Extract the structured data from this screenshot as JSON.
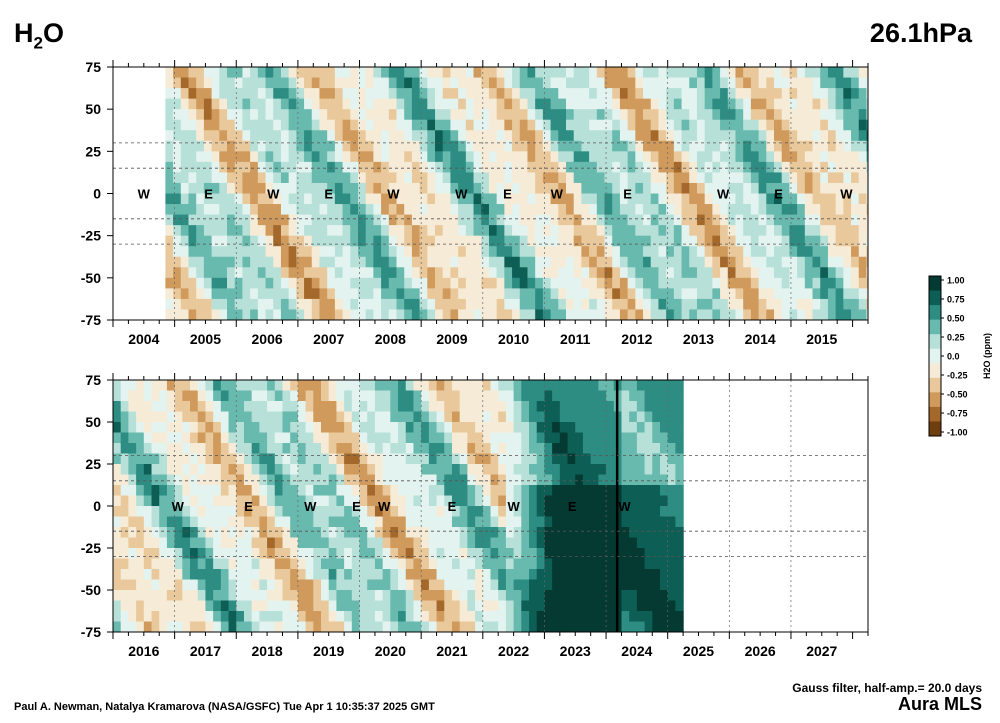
{
  "header": {
    "species_main": "H",
    "species_sub": "2",
    "species_tail": "O",
    "pressure": "26.1hPa"
  },
  "footer": {
    "credit": "Paul A. Newman, Natalya Kramarova (NASA/GSFC) Tue Apr  1 10:35:37 2025 GMT",
    "filter": "Gauss filter, half-amp.= 20.0 days",
    "instrument": "Aura MLS"
  },
  "colorbar": {
    "label": "H2O (ppm)",
    "ticks": [
      "1.00",
      "0.75",
      "0.50",
      "0.25",
      "0.0",
      "-0.25",
      "-0.50",
      "-0.75",
      "-1.00"
    ],
    "colors": [
      "#053a33",
      "#0d5f55",
      "#2d8d82",
      "#68b9ae",
      "#b7e0d9",
      "#e3f3ef",
      "#f6ebd6",
      "#e9c99b",
      "#cf9a5c",
      "#a3682a",
      "#6e3e0f"
    ]
  },
  "chart_data": [
    {
      "type": "heatmap",
      "title": "",
      "xlabel": "",
      "ylabel": "",
      "x_ticks": [
        "2004",
        "2005",
        "2006",
        "2007",
        "2008",
        "2009",
        "2010",
        "2011",
        "2012",
        "2013",
        "2014",
        "2015"
      ],
      "y_ticks": [
        "75",
        "50",
        "25",
        "0",
        "-25",
        "-50",
        "-75"
      ],
      "ylim": [
        -75,
        75
      ],
      "xlim": [
        2003.5,
        2015.75
      ],
      "qbo_phase_labels": [
        {
          "text": "W",
          "x": 2004.0
        },
        {
          "text": "E",
          "x": 2005.05
        },
        {
          "text": "W",
          "x": 2006.1
        },
        {
          "text": "E",
          "x": 2007.0
        },
        {
          "text": "W",
          "x": 2008.05
        },
        {
          "text": "W",
          "x": 2009.15
        },
        {
          "text": "E",
          "x": 2009.9
        },
        {
          "text": "W",
          "x": 2010.7
        },
        {
          "text": "E",
          "x": 2011.85
        },
        {
          "text": "W",
          "x": 2013.4
        },
        {
          "text": "E",
          "x": 2014.3
        },
        {
          "text": "W",
          "x": 2015.4
        }
      ]
    },
    {
      "type": "heatmap",
      "title": "",
      "xlabel": "",
      "ylabel": "",
      "x_ticks": [
        "2016",
        "2017",
        "2018",
        "2019",
        "2020",
        "2021",
        "2022",
        "2023",
        "2024",
        "2025",
        "2026",
        "2027"
      ],
      "y_ticks": [
        "75",
        "50",
        "25",
        "0",
        "-25",
        "-50",
        "-75"
      ],
      "ylim": [
        -75,
        75
      ],
      "xlim": [
        2015.5,
        2027.75
      ],
      "data_end": 2024.75,
      "qbo_phase_labels": [
        {
          "text": "W",
          "x": 2016.55
        },
        {
          "text": "E",
          "x": 2017.7
        },
        {
          "text": "W",
          "x": 2018.7
        },
        {
          "text": "E",
          "x": 2019.45
        },
        {
          "text": "W",
          "x": 2019.9
        },
        {
          "text": "E",
          "x": 2021.0
        },
        {
          "text": "W",
          "x": 2022.0
        },
        {
          "text": "E",
          "x": 2022.95
        },
        {
          "text": "W",
          "x": 2023.8
        }
      ]
    }
  ]
}
